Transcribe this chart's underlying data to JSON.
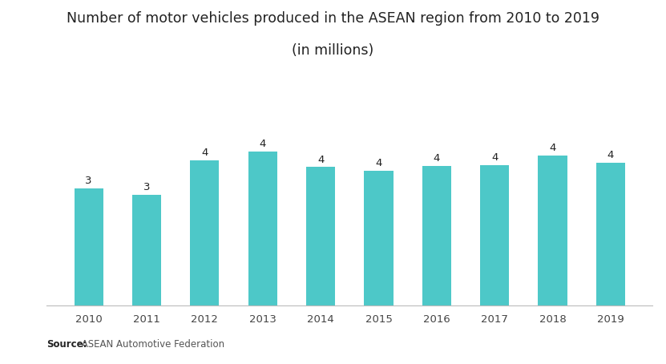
{
  "title_line1": "Number of motor vehicles produced in the ASEAN region from 2010 to 2019",
  "title_line2": "(in millions)",
  "categories": [
    "2010",
    "2011",
    "2012",
    "2013",
    "2014",
    "2015",
    "2016",
    "2017",
    "2018",
    "2019"
  ],
  "values": [
    3.05,
    2.88,
    3.78,
    4.0,
    3.6,
    3.5,
    3.63,
    3.66,
    3.9,
    3.72
  ],
  "bar_color": "#4DC8C8",
  "label_values": [
    "3",
    "3",
    "4",
    "4",
    "4",
    "4",
    "4",
    "4",
    "4",
    "4"
  ],
  "background_color": "#ffffff",
  "source_bold": "Source:",
  "source_normal": " ASEAN Automotive Federation",
  "title_fontsize": 12.5,
  "label_fontsize": 9.5,
  "tick_fontsize": 9.5,
  "ylim": [
    0,
    5.2
  ]
}
